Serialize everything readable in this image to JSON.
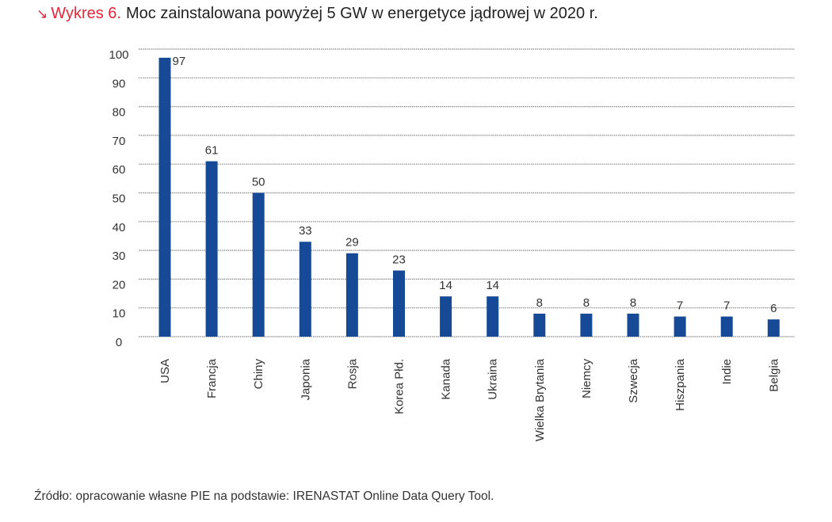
{
  "title": {
    "arrow_icon": "arrow-down-right",
    "number": "Wykres 6.",
    "text": "Moc zainstalowana powyżej 5 GW w energetyce jądrowej w 2020 r."
  },
  "source": "Źródło: opracowanie własne PIE na podstawie: IRENASTAT Online Data Query Tool.",
  "chart_data": {
    "type": "bar",
    "categories": [
      "USA",
      "Francja",
      "Chiny",
      "Japonia",
      "Rosja",
      "Korea Płd.",
      "Kanada",
      "Ukraina",
      "Wielka Brytania",
      "Niemcy",
      "Szwecja",
      "Hiszpania",
      "Indie",
      "Belgia"
    ],
    "values": [
      97,
      61,
      50,
      33,
      29,
      23,
      14,
      14,
      8,
      8,
      8,
      7,
      7,
      6
    ],
    "ylim": [
      0,
      100
    ],
    "yticks": [
      "0",
      "10",
      "20",
      "30",
      "40",
      "50",
      "60",
      "70",
      "80",
      "90",
      "100"
    ],
    "grid": true,
    "bar_color": "#174a96",
    "data_labels": true
  }
}
